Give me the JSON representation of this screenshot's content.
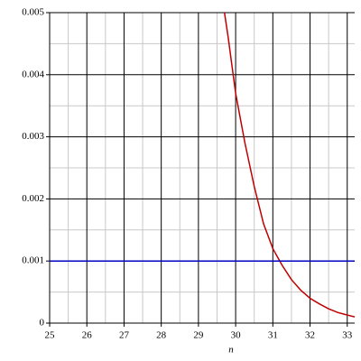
{
  "chart_data": {
    "type": "line",
    "x_label": "n",
    "xlim": [
      25,
      33.2
    ],
    "xticks": [
      25,
      26,
      27,
      28,
      29,
      30,
      31,
      32,
      33
    ],
    "ylim": [
      0,
      0.005
    ],
    "yticks": [
      0,
      0.001,
      0.002,
      0.003,
      0.004,
      0.005
    ],
    "grid": true,
    "series": [
      {
        "color": "#c00000",
        "x": [
          29.7,
          29.8,
          30,
          30.25,
          30.5,
          30.75,
          31,
          31.25,
          31.5,
          31.75,
          32,
          32.25,
          32.5,
          32.75,
          33,
          33.2
        ],
        "values": [
          0.005,
          0.0046,
          0.0037,
          0.0029,
          0.0022,
          0.0016,
          0.0012,
          0.00093,
          0.0007,
          0.00053,
          0.0004,
          0.00031,
          0.00023,
          0.00017,
          0.00013,
          0.0001
        ]
      },
      {
        "color": "#0000c0",
        "x": [
          25,
          33.2
        ],
        "values": [
          0.001,
          0.001
        ]
      }
    ]
  }
}
